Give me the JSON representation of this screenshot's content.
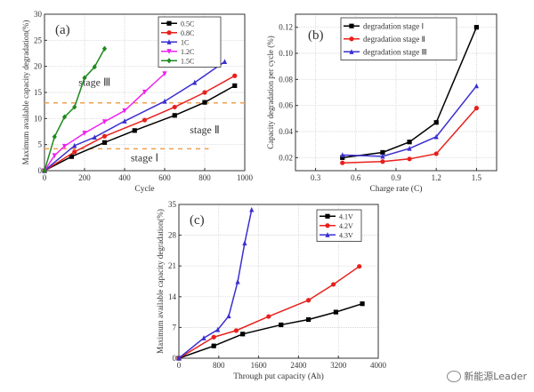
{
  "chart_data": [
    {
      "type": "line",
      "panel_label": "(a)",
      "xlabel": "Cycle",
      "ylabel": "Maximum available capacity degradation(%)",
      "xlim": [
        0,
        1000
      ],
      "ylim": [
        0,
        30
      ],
      "xticks": [
        0,
        200,
        400,
        600,
        800,
        1000
      ],
      "yticks": [
        0,
        5,
        10,
        15,
        20,
        25,
        30
      ],
      "grid": true,
      "legend": "top-right",
      "series": [
        {
          "name": "0.5C",
          "color": "#000000",
          "marker": "square",
          "x": [
            0,
            135,
            300,
            450,
            650,
            800,
            950
          ],
          "y": [
            0,
            2.7,
            5.4,
            7.7,
            10.6,
            13.1,
            16.3
          ]
        },
        {
          "name": "0.8C",
          "color": "#e8201c",
          "marker": "circle",
          "x": [
            0,
            150,
            300,
            500,
            650,
            800,
            950
          ],
          "y": [
            0,
            3.6,
            6.6,
            9.7,
            12.2,
            15.0,
            18.2
          ]
        },
        {
          "name": "1C",
          "color": "#3a2fd0",
          "marker": "triangle",
          "x": [
            0,
            150,
            250,
            400,
            600,
            750,
            900
          ],
          "y": [
            0,
            4.8,
            6.4,
            9.5,
            13.3,
            16.9,
            20.9
          ]
        },
        {
          "name": "1.2C",
          "color": "#ee22ee",
          "marker": "triangle-down",
          "x": [
            0,
            50,
            100,
            200,
            300,
            400,
            500,
            600
          ],
          "y": [
            0,
            2.9,
            4.7,
            7.2,
            9.4,
            11.5,
            15.1,
            18.6
          ]
        },
        {
          "name": "1.5C",
          "color": "#1f8a1f",
          "marker": "diamond",
          "x": [
            0,
            50,
            100,
            150,
            200,
            250,
            300
          ],
          "y": [
            0,
            6.5,
            10.3,
            12.2,
            17.8,
            19.9,
            23.4
          ]
        }
      ],
      "reference_lines": [
        {
          "y": 13,
          "x_range": [
            0,
            1000
          ],
          "color": "#f0a050",
          "style": "dashed"
        },
        {
          "y": 4.2,
          "x_range": [
            0,
            820
          ],
          "color": "#f0a050",
          "style": "dashed"
        }
      ],
      "annotations": [
        {
          "text": "stage Ⅲ",
          "x": 250,
          "y": 16.3
        },
        {
          "text": "stage Ⅱ",
          "x": 800,
          "y": 7.2
        },
        {
          "text": "stage Ⅰ",
          "x": 500,
          "y": 1.8
        }
      ]
    },
    {
      "type": "line",
      "panel_label": "(b)",
      "xlabel": "Charge rate (C)",
      "ylabel": "Capacity degradation per cycle (%)",
      "xlim": [
        0.15,
        1.65
      ],
      "ylim": [
        0.01,
        0.13
      ],
      "xticks": [
        0.3,
        0.6,
        0.9,
        1.2,
        1.5
      ],
      "yticks": [
        0.02,
        0.04,
        0.06,
        0.08,
        0.1,
        0.12
      ],
      "tick_format": {
        "x": 1,
        "y": 2
      },
      "grid": true,
      "legend": "top-center",
      "series": [
        {
          "name": "degradation stage Ⅰ",
          "color": "#000000",
          "marker": "square",
          "x": [
            0.5,
            0.8,
            1.0,
            1.2,
            1.5
          ],
          "y": [
            0.02,
            0.024,
            0.032,
            0.047,
            0.12
          ]
        },
        {
          "name": "degradation stage Ⅱ",
          "color": "#e8201c",
          "marker": "circle",
          "x": [
            0.5,
            0.8,
            1.0,
            1.2,
            1.5
          ],
          "y": [
            0.016,
            0.017,
            0.019,
            0.023,
            0.058
          ]
        },
        {
          "name": "degradation stage Ⅲ",
          "color": "#3a2fd0",
          "marker": "triangle",
          "x": [
            0.5,
            0.8,
            1.0,
            1.2,
            1.5
          ],
          "y": [
            0.022,
            0.021,
            0.027,
            0.036,
            0.075
          ]
        }
      ]
    },
    {
      "type": "line",
      "panel_label": "(c)",
      "xlabel": "Through put capacity (Ah)",
      "ylabel": "Maximum available capacity degradation(%)",
      "xlim": [
        0,
        4000
      ],
      "ylim": [
        0,
        35
      ],
      "xticks": [
        0,
        800,
        1600,
        2400,
        3200,
        4000
      ],
      "yticks": [
        0,
        7,
        14,
        21,
        28,
        35
      ],
      "grid": true,
      "legend": "top-right",
      "series": [
        {
          "name": "4.1V",
          "color": "#000000",
          "marker": "square",
          "x": [
            0,
            700,
            1280,
            2050,
            2600,
            3150,
            3680
          ],
          "y": [
            0,
            2.8,
            5.5,
            7.6,
            8.8,
            10.5,
            12.4
          ]
        },
        {
          "name": "4.2V",
          "color": "#e8201c",
          "marker": "circle",
          "x": [
            0,
            700,
            1150,
            1800,
            2600,
            3100,
            3620
          ],
          "y": [
            0,
            4.8,
            6.3,
            9.5,
            13.2,
            16.8,
            20.9
          ]
        },
        {
          "name": "4.3V",
          "color": "#3a2fd0",
          "marker": "triangle",
          "x": [
            0,
            500,
            780,
            1000,
            1180,
            1320,
            1460
          ],
          "y": [
            0,
            4.6,
            6.5,
            9.6,
            17.4,
            26.2,
            33.8
          ]
        }
      ]
    }
  ],
  "watermark": {
    "text": "新能源Leader",
    "icon": "wechat-icon"
  }
}
